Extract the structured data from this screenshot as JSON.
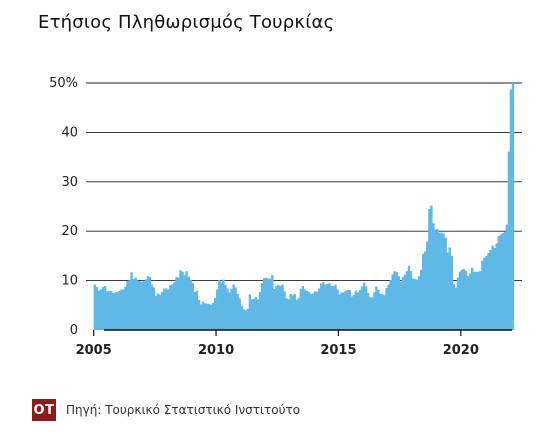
{
  "title": "Ετήσιος Πληθωρισμός Τουρκίας",
  "footer": {
    "logo": "OT",
    "source": "Πηγή: Τουρκικό Στατιστικό Ινστιτούτο"
  },
  "colors": {
    "bar": "#5fb8e6",
    "bar_edge": "#3a9ad6",
    "grid": "#222222",
    "logo_bg": "#8a1c1c"
  },
  "chart_data": {
    "type": "bar",
    "ylim": [
      0,
      50
    ],
    "xlim": [
      2004.85,
      2022.5
    ],
    "yticks": [
      0,
      10,
      20,
      30,
      40,
      50
    ],
    "ytick_labels": [
      "0",
      "10",
      "20",
      "30",
      "40",
      "50%"
    ],
    "xticks": [
      2005,
      2010,
      2015,
      2020
    ],
    "xtick_labels": [
      "2005",
      "2010",
      "2015",
      "2020"
    ],
    "grid": true,
    "x_start": 2005.0,
    "x_step": 0.08333,
    "values": [
      9.2,
      8.7,
      8.0,
      8.2,
      8.7,
      8.9,
      7.8,
      7.9,
      7.9,
      7.5,
      7.6,
      7.7,
      7.9,
      8.2,
      8.2,
      8.8,
      9.9,
      10.1,
      11.7,
      10.3,
      10.6,
      10.0,
      9.9,
      9.7,
      9.9,
      10.2,
      10.9,
      10.7,
      9.2,
      8.6,
      6.9,
      7.4,
      7.1,
      7.7,
      8.4,
      8.4,
      8.2,
      9.1,
      9.2,
      9.7,
      10.7,
      10.6,
      12.1,
      11.8,
      11.1,
      11.9,
      10.8,
      10.1,
      9.5,
      7.7,
      7.9,
      6.1,
      5.2,
      5.7,
      5.4,
      5.3,
      5.3,
      5.1,
      5.5,
      6.5,
      8.2,
      10.1,
      9.6,
      10.2,
      9.1,
      8.4,
      7.6,
      8.3,
      9.2,
      8.6,
      7.3,
      6.4,
      4.9,
      4.2,
      4.0,
      4.3,
      7.2,
      6.2,
      6.3,
      6.7,
      6.2,
      7.7,
      9.5,
      10.5,
      10.6,
      10.4,
      10.4,
      11.1,
      8.3,
      8.9,
      9.1,
      8.9,
      9.2,
      7.8,
      6.4,
      6.2,
      7.3,
      7.0,
      7.3,
      6.1,
      6.5,
      8.3,
      8.9,
      8.2,
      7.9,
      7.7,
      7.3,
      7.4,
      7.8,
      7.8,
      8.4,
      9.4,
      9.7,
      9.2,
      9.3,
      9.5,
      8.9,
      8.9,
      9.2,
      8.2,
      7.2,
      7.6,
      7.6,
      7.9,
      8.1,
      8.1,
      6.8,
      7.1,
      8.0,
      7.6,
      8.1,
      8.8,
      9.6,
      8.8,
      7.5,
      6.6,
      6.6,
      7.6,
      8.8,
      8.1,
      7.3,
      7.2,
      7.0,
      8.5,
      9.2,
      10.1,
      11.3,
      11.9,
      11.7,
      10.9,
      9.8,
      10.7,
      11.2,
      11.9,
      13.0,
      11.9,
      10.4,
      10.3,
      10.2,
      10.9,
      12.2,
      15.4,
      15.9,
      17.9,
      24.5,
      25.2,
      21.6,
      20.3,
      20.4,
      19.7,
      19.7,
      19.5,
      18.7,
      15.7,
      16.7,
      15.0,
      9.3,
      8.6,
      10.6,
      11.8,
      12.2,
      12.4,
      11.9,
      10.9,
      11.4,
      12.6,
      11.8,
      11.8,
      11.8,
      11.9,
      14.0,
      14.6,
      15.0,
      15.6,
      16.2,
      17.1,
      16.6,
      17.5,
      19.0,
      19.3,
      19.6,
      19.9,
      21.3,
      36.1,
      48.7,
      54.4
    ]
  }
}
